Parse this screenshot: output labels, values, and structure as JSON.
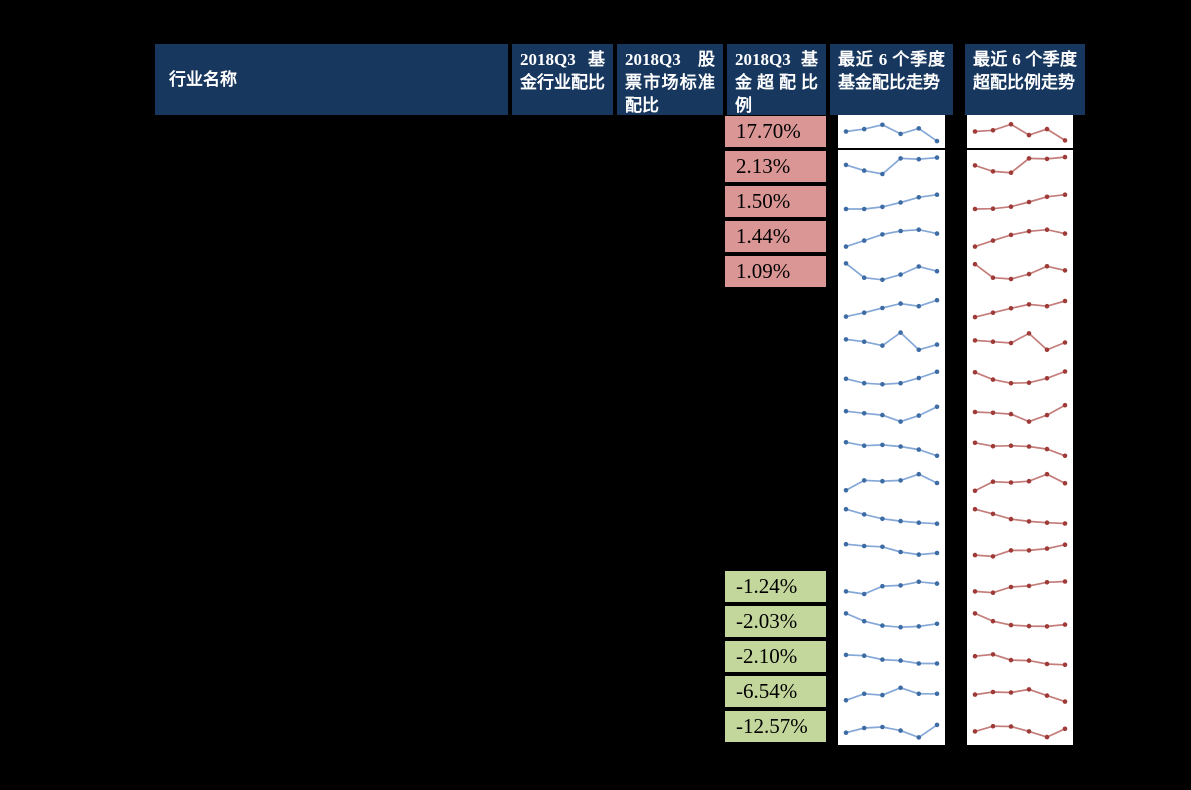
{
  "colors": {
    "header_bg": "#17375e",
    "header_text": "#ffffff",
    "positive_bg": "#d99694",
    "negative_bg": "#c3d69b",
    "fund_line": "#85a8d8",
    "fund_marker": "#3d6ca5",
    "over_line": "#c47d7a",
    "over_marker": "#9e3b38",
    "cell_border": "#000000",
    "chart_bg": "#ffffff",
    "canvas": "#000000"
  },
  "chart_data": {
    "type": "table",
    "columns": [
      "行业名称",
      "2018Q3 基金行业配比",
      "2018Q3 股票市场标准配比",
      "2018Q3 基金超配比例",
      "最近 6 个季度基金配比走势",
      "最近 6 个季度超配比例走势"
    ],
    "sparkline_type": "line",
    "points_per_sparkline": 6,
    "rows": [
      {
        "overweight_ratio": "17.70%",
        "fund_allocation_trend": [
          50,
          60,
          78,
          40,
          63,
          10
        ],
        "overweight_trend": [
          50,
          55,
          80,
          35,
          60,
          13
        ]
      },
      {
        "overweight_ratio": "2.13%",
        "fund_allocation_trend": [
          60,
          38,
          25,
          85,
          82,
          88
        ],
        "overweight_trend": [
          58,
          35,
          30,
          85,
          83,
          90
        ]
      },
      {
        "overweight_ratio": "1.50%",
        "fund_allocation_trend": [
          25,
          25,
          33,
          50,
          70,
          80
        ],
        "overweight_trend": [
          25,
          26,
          34,
          52,
          72,
          80
        ]
      },
      {
        "overweight_ratio": "1.44%",
        "fund_allocation_trend": [
          15,
          38,
          62,
          75,
          80,
          65
        ],
        "overweight_trend": [
          15,
          38,
          60,
          74,
          80,
          65
        ]
      },
      {
        "overweight_ratio": "1.09%",
        "fund_allocation_trend": [
          85,
          30,
          22,
          42,
          73,
          55
        ],
        "overweight_trend": [
          82,
          30,
          25,
          44,
          74,
          58
        ]
      },
      {
        "overweight_ratio": "",
        "fund_allocation_trend": [
          15,
          30,
          48,
          65,
          55,
          78
        ],
        "overweight_trend": [
          13,
          30,
          47,
          62,
          55,
          75
        ]
      },
      {
        "overweight_ratio": "",
        "fund_allocation_trend": [
          62,
          53,
          38,
          88,
          22,
          42
        ],
        "overweight_trend": [
          58,
          53,
          48,
          85,
          22,
          50
        ]
      },
      {
        "overweight_ratio": "",
        "fund_allocation_trend": [
          45,
          28,
          24,
          28,
          48,
          72
        ],
        "overweight_trend": [
          70,
          42,
          28,
          30,
          47,
          73
        ]
      },
      {
        "overweight_ratio": "",
        "fund_allocation_trend": [
          55,
          47,
          40,
          15,
          38,
          72
        ],
        "overweight_trend": [
          52,
          49,
          44,
          15,
          40,
          78
        ]
      },
      {
        "overweight_ratio": "",
        "fund_allocation_trend": [
          70,
          57,
          60,
          54,
          42,
          18
        ],
        "overweight_trend": [
          68,
          55,
          57,
          54,
          44,
          18
        ]
      },
      {
        "overweight_ratio": "",
        "fund_allocation_trend": [
          20,
          58,
          55,
          58,
          82,
          48
        ],
        "overweight_trend": [
          18,
          53,
          50,
          55,
          82,
          47
        ]
      },
      {
        "overweight_ratio": "",
        "fund_allocation_trend": [
          82,
          62,
          45,
          36,
          30,
          26
        ],
        "overweight_trend": [
          82,
          64,
          44,
          35,
          30,
          27
        ]
      },
      {
        "overweight_ratio": "",
        "fund_allocation_trend": [
          82,
          75,
          72,
          52,
          42,
          48
        ],
        "overweight_trend": [
          40,
          35,
          58,
          58,
          65,
          80
        ]
      },
      {
        "overweight_ratio": "-1.24%",
        "fund_allocation_trend": [
          35,
          25,
          55,
          58,
          72,
          65
        ],
        "overweight_trend": [
          35,
          30,
          52,
          56,
          70,
          73
        ]
      },
      {
        "overweight_ratio": "-2.03%",
        "fund_allocation_trend": [
          85,
          55,
          38,
          32,
          35,
          45
        ],
        "overweight_trend": [
          85,
          55,
          40,
          36,
          35,
          42
        ]
      },
      {
        "overweight_ratio": "-2.10%",
        "fund_allocation_trend": [
          60,
          57,
          42,
          38,
          27,
          27
        ],
        "overweight_trend": [
          55,
          62,
          40,
          38,
          25,
          22
        ]
      },
      {
        "overweight_ratio": "-6.54%",
        "fund_allocation_trend": [
          20,
          45,
          40,
          68,
          45,
          45
        ],
        "overweight_trend": [
          42,
          52,
          50,
          62,
          38,
          15
        ]
      },
      {
        "overweight_ratio": "-12.57%",
        "fund_allocation_trend": [
          30,
          48,
          52,
          38,
          12,
          60
        ],
        "overweight_trend": [
          35,
          55,
          54,
          35,
          13,
          45
        ]
      }
    ]
  }
}
